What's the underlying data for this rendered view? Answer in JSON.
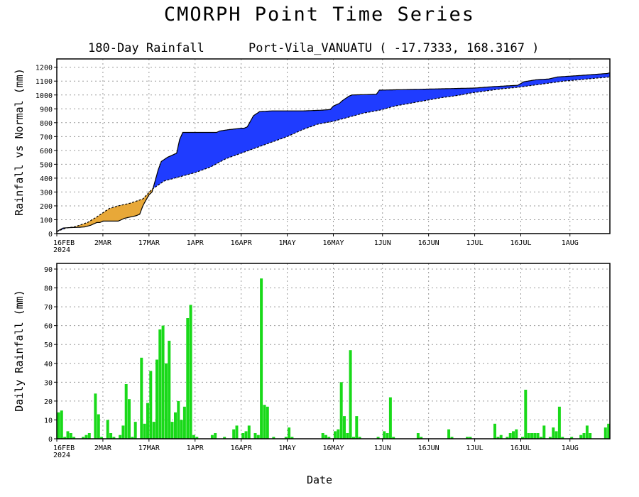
{
  "title": "CMORPH Point Time Series",
  "subtitle_left": "180-Day Rainfall",
  "subtitle_right": "Port-Vila_VANUATU ( -17.7333, 168.3167 )",
  "xlabel": "Date",
  "year_label": "2024",
  "x_ticks": [
    {
      "day": 0,
      "label": "16FEB"
    },
    {
      "day": 15,
      "label": "2MAR"
    },
    {
      "day": 30,
      "label": "17MAR"
    },
    {
      "day": 45,
      "label": "1APR"
    },
    {
      "day": 60,
      "label": "16APR"
    },
    {
      "day": 75,
      "label": "1MAY"
    },
    {
      "day": 90,
      "label": "16MAY"
    },
    {
      "day": 106,
      "label": "1JUN"
    },
    {
      "day": 121,
      "label": "16JUN"
    },
    {
      "day": 136,
      "label": "1JUL"
    },
    {
      "day": 151,
      "label": "16JUL"
    },
    {
      "day": 167,
      "label": "1AUG"
    }
  ],
  "colors": {
    "surplus": "#1f3cff",
    "deficit": "#e8a838",
    "bar": "#19d919"
  },
  "chart_data": [
    {
      "type": "area",
      "ylabel": "Rainfall vs Normal (mm)",
      "ylim": [
        0,
        1260
      ],
      "yticks": [
        0,
        100,
        200,
        300,
        400,
        500,
        600,
        700,
        800,
        900,
        1000,
        1100,
        1200
      ],
      "grid": true,
      "series": [
        {
          "name": "Actual",
          "points": [
            [
              0,
              15
            ],
            [
              2,
              40
            ],
            [
              4,
              43
            ],
            [
              7,
              45
            ],
            [
              9,
              48
            ],
            [
              11,
              60
            ],
            [
              13,
              80
            ],
            [
              14,
              80
            ],
            [
              15,
              90
            ],
            [
              20,
              90
            ],
            [
              22,
              110
            ],
            [
              24,
              120
            ],
            [
              26,
              130
            ],
            [
              27,
              140
            ],
            [
              28,
              200
            ],
            [
              30,
              280
            ],
            [
              31,
              300
            ],
            [
              33,
              460
            ],
            [
              34,
              520
            ],
            [
              36,
              550
            ],
            [
              38,
              570
            ],
            [
              39,
              580
            ],
            [
              40,
              680
            ],
            [
              41,
              730
            ],
            [
              46,
              730
            ],
            [
              52,
              730
            ],
            [
              53,
              740
            ],
            [
              56,
              750
            ],
            [
              58,
              755
            ],
            [
              60,
              760
            ],
            [
              61,
              760
            ],
            [
              62,
              770
            ],
            [
              64,
              850
            ],
            [
              66,
              880
            ],
            [
              70,
              885
            ],
            [
              74,
              885
            ],
            [
              80,
              885
            ],
            [
              86,
              890
            ],
            [
              89,
              895
            ],
            [
              90,
              920
            ],
            [
              92,
              940
            ],
            [
              93,
              960
            ],
            [
              95,
              990
            ],
            [
              96,
              1000
            ],
            [
              104,
              1005
            ],
            [
              105,
              1035
            ],
            [
              116,
              1040
            ],
            [
              136,
              1050
            ],
            [
              142,
              1060
            ],
            [
              150,
              1070
            ],
            [
              152,
              1095
            ],
            [
              156,
              1110
            ],
            [
              160,
              1115
            ],
            [
              163,
              1130
            ],
            [
              170,
              1140
            ],
            [
              179,
              1155
            ],
            [
              180,
              1160
            ]
          ]
        },
        {
          "name": "Normal",
          "points": [
            [
              0,
              15
            ],
            [
              3,
              40
            ],
            [
              6,
              50
            ],
            [
              10,
              80
            ],
            [
              13,
              120
            ],
            [
              15,
              150
            ],
            [
              17,
              180
            ],
            [
              20,
              200
            ],
            [
              24,
              220
            ],
            [
              28,
              250
            ],
            [
              31,
              320
            ],
            [
              35,
              380
            ],
            [
              40,
              410
            ],
            [
              45,
              440
            ],
            [
              50,
              480
            ],
            [
              55,
              540
            ],
            [
              60,
              580
            ],
            [
              65,
              620
            ],
            [
              70,
              660
            ],
            [
              75,
              700
            ],
            [
              80,
              750
            ],
            [
              85,
              790
            ],
            [
              90,
              810
            ],
            [
              95,
              840
            ],
            [
              100,
              870
            ],
            [
              105,
              890
            ],
            [
              110,
              920
            ],
            [
              115,
              940
            ],
            [
              120,
              960
            ],
            [
              125,
              980
            ],
            [
              130,
              995
            ],
            [
              135,
              1015
            ],
            [
              140,
              1030
            ],
            [
              145,
              1045
            ],
            [
              150,
              1055
            ],
            [
              155,
              1070
            ],
            [
              160,
              1085
            ],
            [
              165,
              1100
            ],
            [
              170,
              1110
            ],
            [
              175,
              1120
            ],
            [
              180,
              1130
            ]
          ]
        }
      ]
    },
    {
      "type": "bar",
      "ylabel": "Daily Rainfall (mm)",
      "ylim": [
        0,
        93
      ],
      "yticks": [
        0,
        10,
        20,
        30,
        40,
        50,
        60,
        70,
        80,
        90
      ],
      "grid": true,
      "x": [
        0,
        1,
        2,
        3,
        4,
        5,
        6,
        7,
        8,
        9,
        10,
        11,
        12,
        13,
        14,
        15,
        16,
        17,
        18,
        19,
        20,
        21,
        22,
        23,
        24,
        25,
        26,
        27,
        28,
        29,
        30,
        31,
        32,
        33,
        34,
        35,
        36,
        37,
        38,
        39,
        40,
        41,
        42,
        43,
        44,
        45,
        46,
        47,
        48,
        49,
        50,
        51,
        52,
        53,
        54,
        55,
        56,
        57,
        58,
        59,
        60,
        61,
        62,
        63,
        64,
        65,
        66,
        67,
        68,
        69,
        70,
        71,
        72,
        73,
        74,
        75,
        76,
        77,
        78,
        79,
        80,
        81,
        82,
        83,
        84,
        85,
        86,
        87,
        88,
        89,
        90,
        91,
        92,
        93,
        94,
        95,
        96,
        97,
        98,
        99,
        100,
        101,
        102,
        103,
        104,
        105,
        106,
        107,
        108,
        109,
        110,
        111,
        112,
        113,
        114,
        115,
        116,
        117,
        118,
        119,
        120,
        121,
        122,
        123,
        124,
        125,
        126,
        127,
        128,
        129,
        130,
        131,
        132,
        133,
        134,
        135,
        136,
        137,
        138,
        139,
        140,
        141,
        142,
        143,
        144,
        145,
        146,
        147,
        148,
        149,
        150,
        151,
        152,
        153,
        154,
        155,
        156,
        157,
        158,
        159,
        160,
        161,
        162,
        163,
        164,
        165,
        166,
        167,
        168,
        169,
        170,
        171,
        172,
        173,
        174,
        175,
        176,
        177,
        178,
        179
      ],
      "values": [
        14,
        15,
        1,
        4,
        3,
        1,
        0,
        0,
        1,
        2,
        3,
        0,
        24,
        13,
        1,
        0,
        10,
        3,
        1,
        0,
        2,
        7,
        29,
        21,
        1,
        9,
        0,
        43,
        8,
        19,
        36,
        9,
        42,
        58,
        60,
        40,
        52,
        9,
        14,
        20,
        10,
        17,
        64,
        71,
        2,
        1,
        0,
        0,
        0,
        0,
        2,
        3,
        0,
        0,
        1,
        0,
        0,
        5,
        7,
        0,
        3,
        4,
        7,
        0,
        3,
        2,
        85,
        18,
        17,
        0,
        1,
        0,
        0,
        0,
        1,
        6,
        1,
        0,
        0,
        0,
        0,
        0,
        0,
        0,
        0,
        0,
        3,
        2,
        1,
        0,
        4,
        5,
        30,
        12,
        3,
        47,
        1,
        12,
        1,
        0,
        0,
        0,
        0,
        0,
        1,
        0,
        4,
        3,
        22,
        1,
        0,
        0,
        0,
        0,
        0,
        0,
        0,
        3,
        1,
        0,
        0,
        0,
        0,
        0,
        0,
        0,
        0,
        5,
        1,
        0,
        0,
        0,
        0,
        1,
        1,
        0,
        0,
        0,
        0,
        0,
        0,
        0,
        8,
        1,
        2,
        0,
        1,
        3,
        4,
        5,
        0,
        1,
        26,
        3,
        3,
        3,
        3,
        1,
        7,
        0,
        1,
        6,
        4,
        17,
        1,
        0,
        0,
        1,
        0,
        0,
        2,
        3,
        7,
        3,
        0,
        0,
        0,
        0,
        6,
        8
      ]
    }
  ]
}
